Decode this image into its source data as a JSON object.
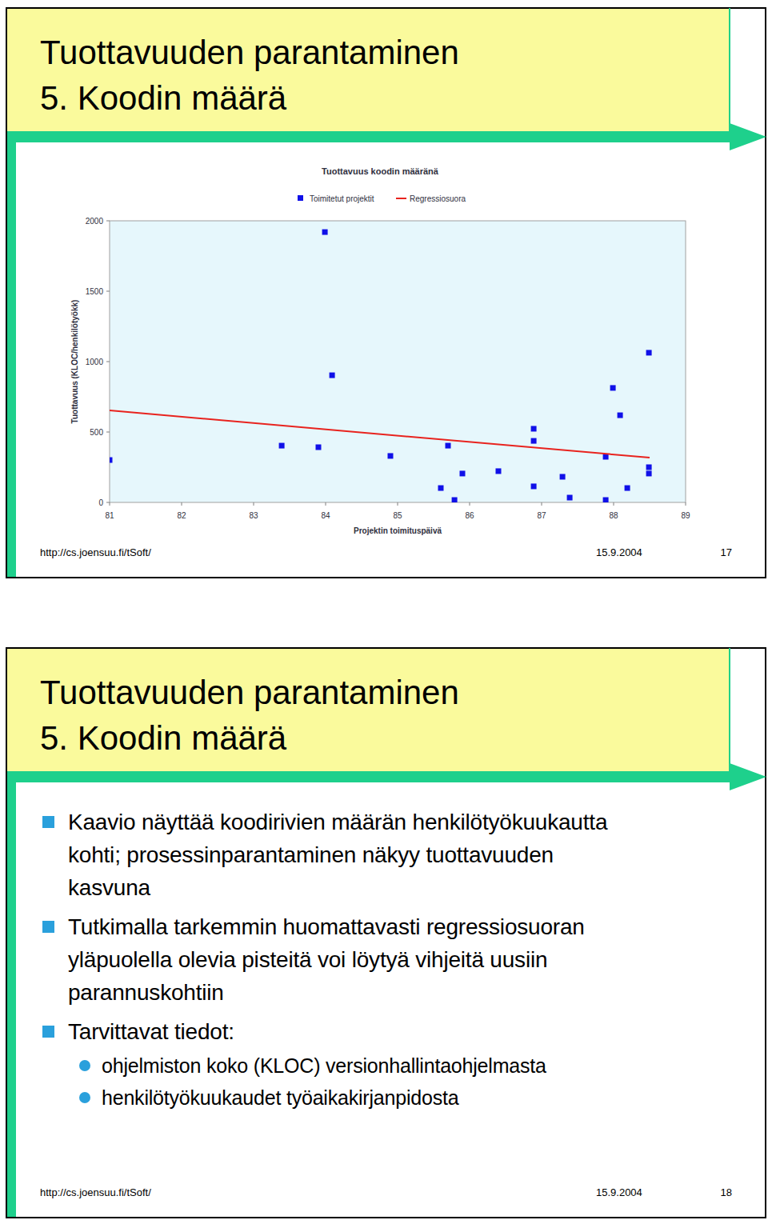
{
  "slides": [
    {
      "title": [
        "Tuottavuuden parantaminen",
        "5. Koodin määrä"
      ],
      "footer": {
        "url": "http://cs.joensuu.fi/tSoft/",
        "date": "15.9.2004",
        "page": 17
      }
    },
    {
      "title": [
        "Tuottavuuden parantaminen",
        "5. Koodin määrä"
      ],
      "bullets": [
        {
          "lines": [
            "Kaavio näyttää koodirivien määrän henkilötyökuukautta",
            "kohti; prosessinparantaminen näkyy tuottavuuden",
            "kasvuna"
          ],
          "sub": []
        },
        {
          "lines": [
            "Tutkimalla tarkemmin huomattavasti regressiosuoran",
            "yläpuolella olevia pisteitä voi löytyä vihjeitä uusiin",
            "parannuskohtiin"
          ],
          "sub": []
        },
        {
          "lines": [
            "Tarvittavat tiedot:"
          ],
          "sub": [
            "ohjelmiston koko (KLOC) versionhallintaohjelmasta",
            "henkilötyökuukaudet työaikakirjanpidosta"
          ]
        }
      ],
      "footer": {
        "url": "http://cs.joensuu.fi/tSoft/",
        "date": "15.9.2004",
        "page": 18
      }
    }
  ],
  "chart_data": {
    "type": "scatter",
    "title": "Tuottavuus koodin määränä",
    "x_label": "Projektin toimituspäivä",
    "y_label": "Tuottavuus (KLOC/henkilötyökk)",
    "xlim": [
      81,
      89
    ],
    "xticks": [
      81,
      82,
      83,
      84,
      85,
      86,
      87,
      88,
      89
    ],
    "ylim": [
      0,
      2000
    ],
    "yticks": [
      0,
      500,
      1000,
      1500,
      2000
    ],
    "grid": false,
    "legend": "top",
    "series": [
      {
        "name": "Toimitetut projektit",
        "type": "scatter",
        "color": "#1010e8",
        "marker": "square",
        "x": [
          81.0,
          83.39,
          83.9,
          83.99,
          84.09,
          84.9,
          85.6,
          85.7,
          85.79,
          85.9,
          86.4,
          86.89,
          86.89,
          86.89,
          87.29,
          87.39,
          87.89,
          87.89,
          87.99,
          88.09,
          88.19,
          88.49,
          88.49,
          88.49
        ],
        "values": [
          301,
          403,
          392,
          1920,
          903,
          330,
          102,
          403,
          17,
          205,
          222,
          523,
          437,
          114,
          182,
          34,
          17,
          324,
          813,
          619,
          102,
          1063,
          250,
          205
        ]
      },
      {
        "name": "Regressiosuora",
        "type": "line",
        "color": "#e8231e",
        "line_style": "solid",
        "x": [
          81,
          88.5
        ],
        "values": [
          653,
          318
        ]
      }
    ]
  }
}
